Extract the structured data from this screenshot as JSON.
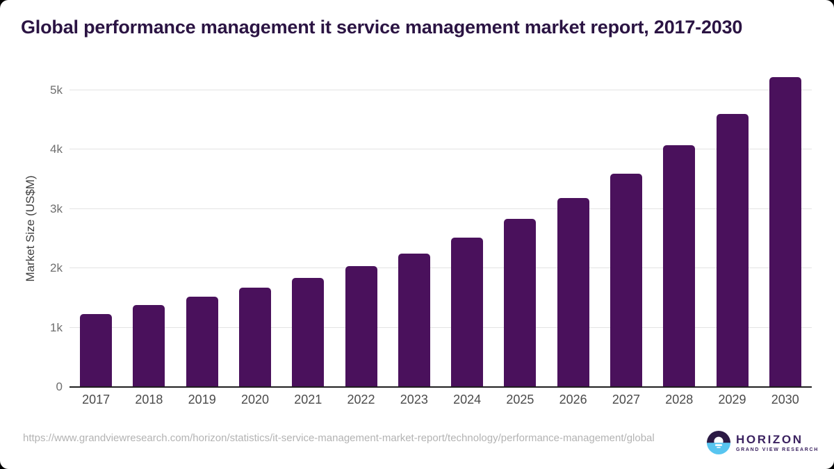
{
  "title": "Global performance management it service management market report, 2017-2030",
  "chart_data": {
    "type": "bar",
    "title": "Global performance management it service management market report, 2017-2030",
    "categories": [
      "2017",
      "2018",
      "2019",
      "2020",
      "2021",
      "2022",
      "2023",
      "2024",
      "2025",
      "2026",
      "2027",
      "2028",
      "2029",
      "2030"
    ],
    "values": [
      1230,
      1375,
      1520,
      1670,
      1840,
      2040,
      2250,
      2515,
      2835,
      3185,
      3595,
      4065,
      4600,
      5215
    ],
    "xlabel": "",
    "ylabel": "Market Size (US$M)",
    "ylim": [
      0,
      5345
    ],
    "y_ticks": [
      {
        "value": 0,
        "label": "0"
      },
      {
        "value": 1000,
        "label": "1k"
      },
      {
        "value": 2000,
        "label": "2k"
      },
      {
        "value": 3000,
        "label": "3k"
      },
      {
        "value": 4000,
        "label": "4k"
      },
      {
        "value": 5000,
        "label": "5k"
      }
    ],
    "grid": "horizontal",
    "legend": "none",
    "bar_color": "#4a115c"
  },
  "footer": {
    "source_url": "https://www.grandviewresearch.com/horizon/statistics/it-service-management-market-report/technology/performance-management/global"
  },
  "logo": {
    "name": "HORIZON",
    "subtitle": "GRAND VIEW RESEARCH",
    "icon": "horizon-sun-circle",
    "colors": {
      "dark_purple": "#2c1a45",
      "light_blue": "#58c5f0"
    }
  },
  "colors": {
    "title_text": "#2b1443",
    "bar": "#4a115c",
    "gridline": "#e3e3e3",
    "axis_line": "#1f1f1f",
    "tick_text": "#6e6e6e",
    "xlabel_text": "#4b4b4b",
    "source_text": "#b3b3b3"
  }
}
